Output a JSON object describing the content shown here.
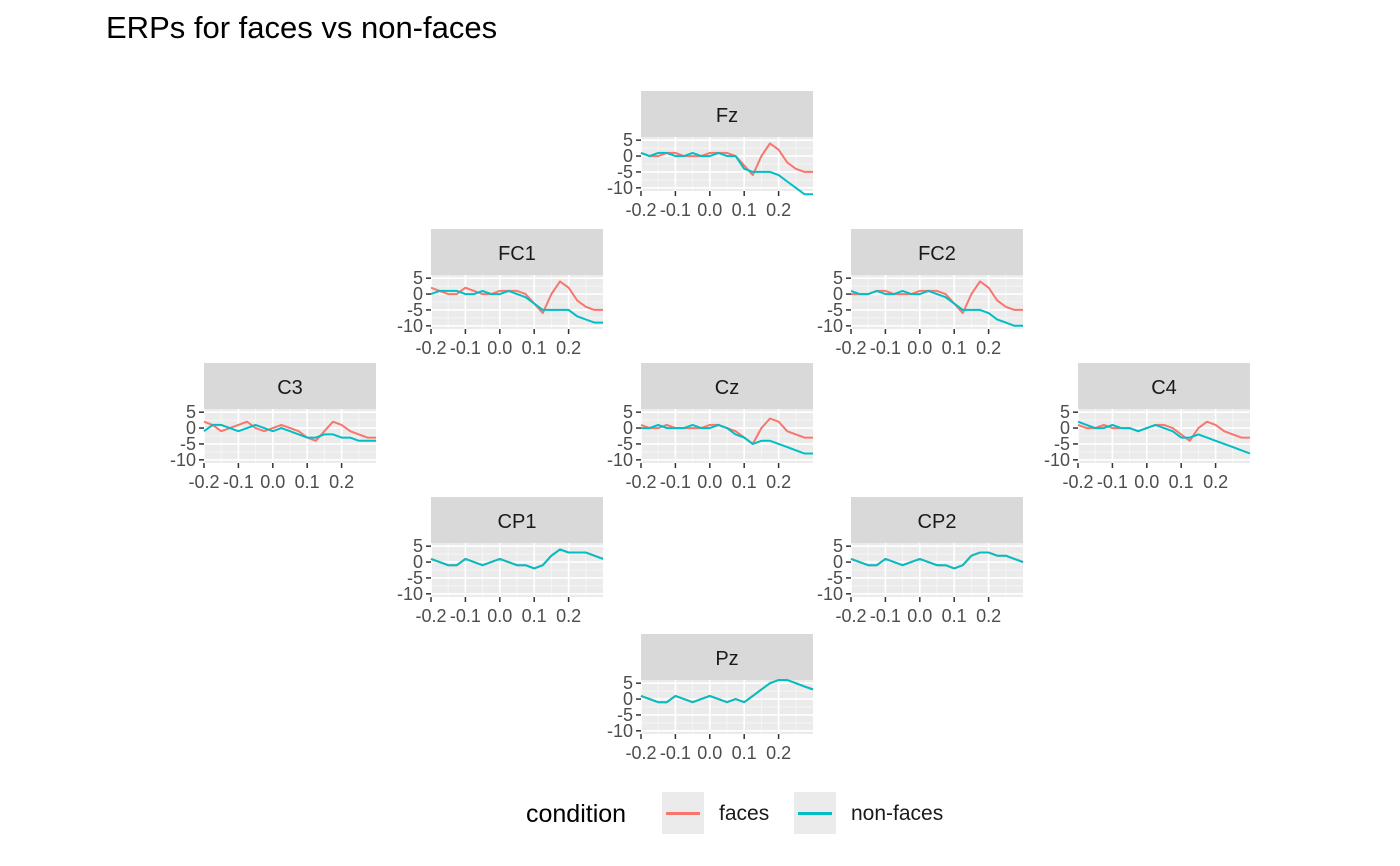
{
  "title": "ERPs for faces vs non-faces",
  "legend": {
    "title": "condition",
    "entries": [
      {
        "label": "faces",
        "color": "#F8766D"
      },
      {
        "label": "non-faces",
        "color": "#00BFC4"
      }
    ]
  },
  "chart_data": {
    "type": "line",
    "facet_layout": "scalp topography (electrode positions)",
    "xlim": [
      -0.2,
      0.3
    ],
    "ylim": [
      -11,
      6
    ],
    "x_ticks": [
      -0.2,
      -0.1,
      0.0,
      0.1,
      0.2
    ],
    "x_tick_labels": [
      "-0.2",
      "-0.1",
      "0.0",
      "0.1",
      "0.2"
    ],
    "y_ticks": [
      5,
      0,
      -5,
      -10
    ],
    "y_tick_labels": [
      "5",
      "0",
      "-5",
      "-10"
    ],
    "grid": true,
    "legend_position": "bottom",
    "series_names": [
      "faces",
      "non-faces"
    ],
    "x": [
      -0.2,
      -0.175,
      -0.15,
      -0.125,
      -0.1,
      -0.075,
      -0.05,
      -0.025,
      0.0,
      0.025,
      0.05,
      0.075,
      0.1,
      0.125,
      0.15,
      0.175,
      0.2,
      0.225,
      0.25,
      0.275,
      0.3
    ],
    "panels": [
      {
        "name": "Fz",
        "faces": [
          1,
          0,
          0,
          1,
          1,
          0,
          0,
          0,
          1,
          1,
          1,
          0,
          -3,
          -6,
          0,
          4,
          2,
          -2,
          -4,
          -5,
          -5
        ],
        "non_faces": [
          1,
          0,
          1,
          1,
          0,
          0,
          1,
          0,
          0,
          1,
          0,
          0,
          -4,
          -5,
          -5,
          -5,
          -6,
          -8,
          -10,
          -12,
          -12
        ]
      },
      {
        "name": "FC1",
        "faces": [
          2,
          1,
          0,
          0,
          2,
          1,
          0,
          0,
          1,
          1,
          1,
          0,
          -3,
          -6,
          0,
          4,
          2,
          -2,
          -4,
          -5,
          -5
        ],
        "non_faces": [
          0,
          1,
          1,
          1,
          0,
          0,
          1,
          0,
          0,
          1,
          0,
          -1,
          -3,
          -5,
          -5,
          -5,
          -5,
          -7,
          -8,
          -9,
          -9
        ]
      },
      {
        "name": "FC2",
        "faces": [
          0,
          0,
          0,
          1,
          1,
          0,
          0,
          0,
          1,
          1,
          1,
          0,
          -3,
          -6,
          0,
          4,
          2,
          -2,
          -4,
          -5,
          -5
        ],
        "non_faces": [
          1,
          0,
          0,
          1,
          0,
          0,
          1,
          0,
          0,
          1,
          0,
          -1,
          -3,
          -5,
          -5,
          -5,
          -6,
          -8,
          -9,
          -10,
          -10
        ]
      },
      {
        "name": "C3",
        "faces": [
          2,
          1,
          -1,
          0,
          1,
          2,
          0,
          -1,
          0,
          1,
          0,
          -1,
          -3,
          -4,
          -1,
          2,
          1,
          -1,
          -2,
          -3,
          -3
        ],
        "non_faces": [
          -1,
          1,
          1,
          0,
          -1,
          0,
          1,
          0,
          -1,
          0,
          -1,
          -2,
          -3,
          -3,
          -2,
          -2,
          -3,
          -3,
          -4,
          -4,
          -4
        ]
      },
      {
        "name": "Cz",
        "faces": [
          1,
          0,
          0,
          1,
          0,
          0,
          0,
          0,
          1,
          1,
          0,
          -1,
          -3,
          -5,
          0,
          3,
          2,
          -1,
          -2,
          -3,
          -3
        ],
        "non_faces": [
          0,
          0,
          1,
          0,
          0,
          0,
          1,
          0,
          0,
          1,
          0,
          -2,
          -3,
          -5,
          -4,
          -4,
          -5,
          -6,
          -7,
          -8,
          -8
        ]
      },
      {
        "name": "C4",
        "faces": [
          1,
          0,
          0,
          1,
          0,
          0,
          0,
          -1,
          0,
          1,
          1,
          0,
          -2,
          -4,
          0,
          2,
          1,
          -1,
          -2,
          -3,
          -3
        ],
        "non_faces": [
          2,
          1,
          0,
          0,
          1,
          0,
          0,
          -1,
          0,
          1,
          0,
          -1,
          -3,
          -3,
          -2,
          -3,
          -4,
          -5,
          -6,
          -7,
          -8
        ]
      },
      {
        "name": "CP1",
        "faces": [
          1,
          0,
          -1,
          -1,
          1,
          0,
          -1,
          0,
          1,
          0,
          -1,
          -1,
          -2,
          -1,
          2,
          4,
          3,
          3,
          3,
          2,
          1
        ]
      },
      {
        "name": "CP2",
        "faces": [
          1,
          0,
          -1,
          -1,
          1,
          0,
          -1,
          0,
          1,
          0,
          -1,
          -1,
          -2,
          -1,
          2,
          3,
          3,
          2,
          2,
          1,
          0
        ]
      },
      {
        "name": "Pz",
        "faces": [
          1,
          0,
          -1,
          -1,
          1,
          0,
          -1,
          0,
          1,
          0,
          -1,
          0,
          -1,
          1,
          3,
          5,
          6,
          6,
          5,
          4,
          3
        ]
      }
    ]
  }
}
